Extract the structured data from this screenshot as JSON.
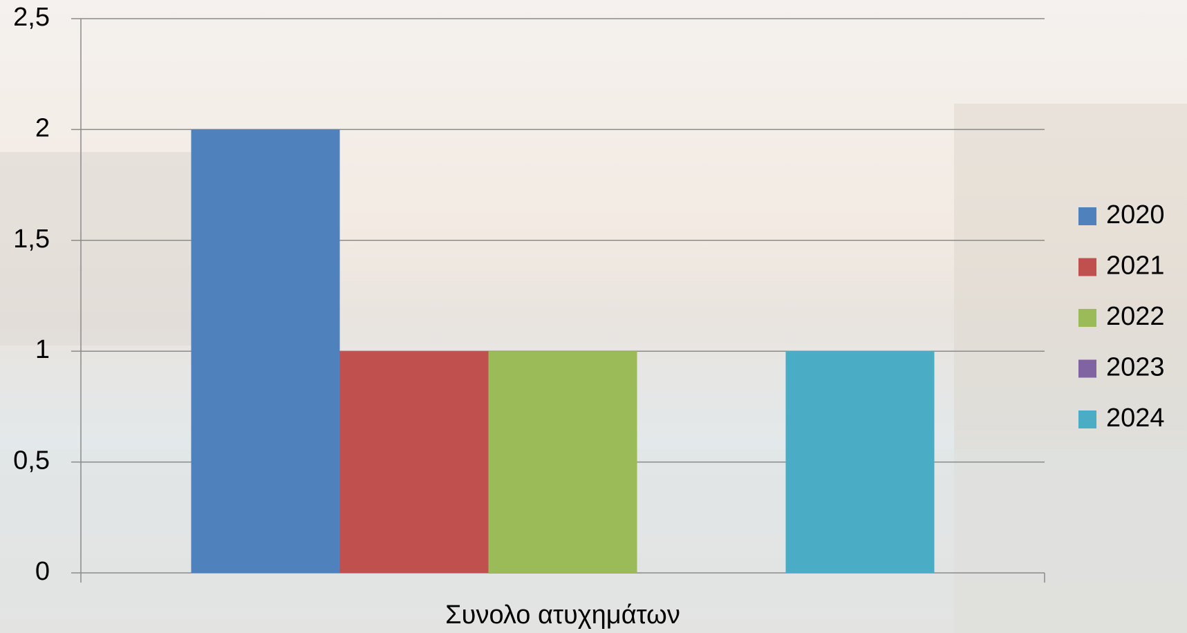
{
  "chart_data": {
    "type": "bar",
    "categories": [
      "Συνολο ατυχημάτων"
    ],
    "series": [
      {
        "name": "2020",
        "color": "#4f81bd",
        "values": [
          2
        ]
      },
      {
        "name": "2021",
        "color": "#c0504d",
        "values": [
          1
        ]
      },
      {
        "name": "2022",
        "color": "#9bbb59",
        "values": [
          1
        ]
      },
      {
        "name": "2023",
        "color": "#8064a2",
        "values": [
          0
        ]
      },
      {
        "name": "2024",
        "color": "#4bacc6",
        "values": [
          1
        ]
      }
    ],
    "ylim": [
      0,
      2.5
    ],
    "yticks": [
      0,
      {
        "value": 0.5,
        "label": "0,5"
      },
      1,
      {
        "value": 1.5,
        "label": "1,5"
      },
      2,
      {
        "value": 2.5,
        "label": "2,5"
      }
    ],
    "grid": true,
    "legend": "right"
  }
}
